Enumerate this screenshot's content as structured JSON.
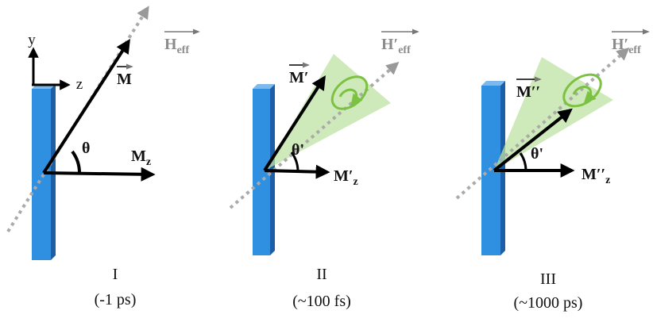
{
  "axes": {
    "y": "y",
    "z": "z"
  },
  "panels": [
    {
      "field": {
        "main": "H",
        "sub": "eff"
      },
      "moment": {
        "main": "M"
      },
      "angle": "θ",
      "component": {
        "main": "M",
        "sub": "z"
      },
      "numeral": "I",
      "time": "(-1 ps)"
    },
    {
      "field": {
        "main": "H′",
        "sub": "eff"
      },
      "moment": {
        "main": "M′"
      },
      "angle": "θ'",
      "component": {
        "main": "M′",
        "sub": "z"
      },
      "numeral": "II",
      "time": "(~100 fs)"
    },
    {
      "field": {
        "main": "H′",
        "sub": "eff"
      },
      "moment": {
        "main": "M′′"
      },
      "angle": "θ'",
      "component": {
        "main": "M′′",
        "sub": "z"
      },
      "numeral": "III",
      "time": "(~1000 ps)"
    }
  ]
}
